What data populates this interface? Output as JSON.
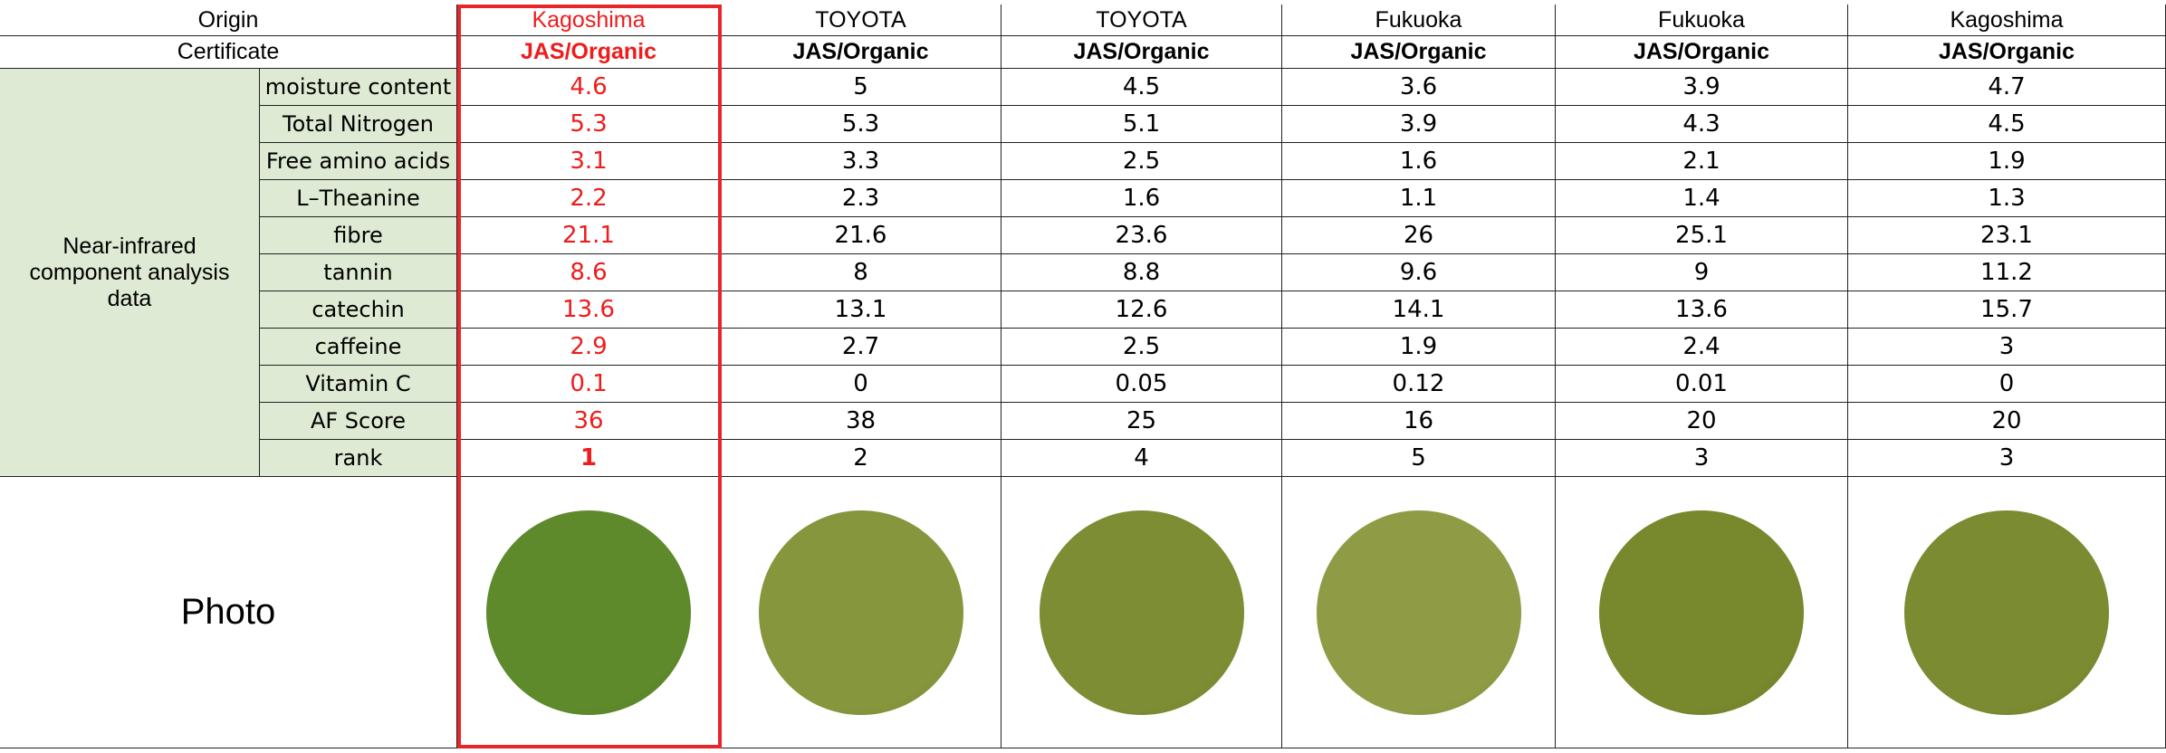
{
  "header": {
    "origin_label": "Origin",
    "certificate_label": "Certificate"
  },
  "group_label": "Near-infrared component analysis data",
  "photo_label": "Photo",
  "columns": [
    {
      "origin": "Kagoshima",
      "certificate": "JAS/Organic"
    },
    {
      "origin": "TOYOTA",
      "certificate": "JAS/Organic"
    },
    {
      "origin": "TOYOTA",
      "certificate": "JAS/Organic"
    },
    {
      "origin": "Fukuoka",
      "certificate": "JAS/Organic"
    },
    {
      "origin": "Fukuoka",
      "certificate": "JAS/Organic"
    },
    {
      "origin": "Kagoshima",
      "certificate": "JAS/Organic"
    }
  ],
  "rows": [
    {
      "label": "moisture content",
      "values": [
        4.6,
        5,
        4.5,
        3.6,
        3.9,
        4.7
      ]
    },
    {
      "label": "Total Nitrogen",
      "values": [
        5.3,
        5.3,
        5.1,
        3.9,
        4.3,
        4.5
      ]
    },
    {
      "label": "Free amino acids",
      "values": [
        3.1,
        3.3,
        2.5,
        1.6,
        2.1,
        1.9
      ]
    },
    {
      "label": "L–Theanine",
      "values": [
        2.2,
        2.3,
        1.6,
        1.1,
        1.4,
        1.3
      ]
    },
    {
      "label": "fibre",
      "values": [
        21.1,
        21.6,
        23.6,
        26,
        25.1,
        23.1
      ]
    },
    {
      "label": "tannin",
      "values": [
        8.6,
        8,
        8.8,
        9.6,
        9,
        11.2
      ]
    },
    {
      "label": "catechin",
      "values": [
        13.6,
        13.1,
        12.6,
        14.1,
        13.6,
        15.7
      ]
    },
    {
      "label": "caffeine",
      "values": [
        2.9,
        2.7,
        2.5,
        1.9,
        2.4,
        3
      ]
    },
    {
      "label": "Vitamin C",
      "values": [
        0.1,
        0,
        0.05,
        0.12,
        0.01,
        0
      ]
    },
    {
      "label": "AF Score",
      "values": [
        36,
        38,
        25,
        16,
        20,
        20
      ]
    },
    {
      "label": "rank",
      "values": [
        1,
        2,
        4,
        5,
        3,
        3
      ]
    }
  ]
}
